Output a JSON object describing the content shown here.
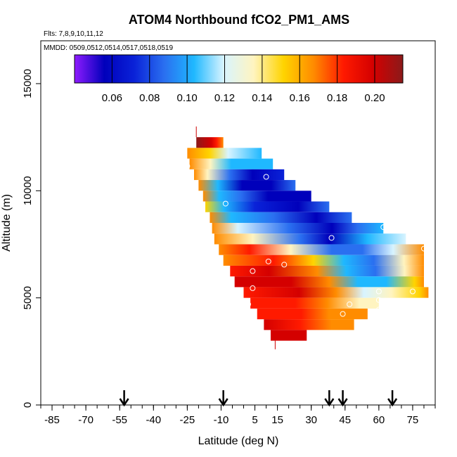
{
  "chart_data": {
    "type": "heatmap",
    "title": "ATOM4 Northbound fCO2_PM1_AMS",
    "flights_note": "Flts: 7,8,9,10,11,12",
    "dates_note": "MMDD: 0509,0512,0514,0517,0518,0519",
    "xlabel": "Latitude (deg N)",
    "ylabel": "Altitude (m)",
    "xlim": [
      -90,
      85
    ],
    "ylim": [
      0,
      17000
    ],
    "x_tick_labels": [
      "-85",
      "-70",
      "-55",
      "-40",
      "-25",
      "-10",
      "5",
      "15",
      "30",
      "45",
      "60",
      "75"
    ],
    "x_tick_values": [
      -85,
      -70,
      -55,
      -40,
      -25,
      -10,
      5,
      15,
      30,
      45,
      60,
      75
    ],
    "y_tick_labels": [
      "0",
      "5000",
      "10000",
      "15000"
    ],
    "y_tick_values": [
      0,
      5000,
      10000,
      15000
    ],
    "colorbar": {
      "range": [
        0.04,
        0.215
      ],
      "tick_labels": [
        "0.06",
        "0.08",
        "0.10",
        "0.12",
        "0.14",
        "0.16",
        "0.18",
        "0.20"
      ],
      "tick_values": [
        0.06,
        0.08,
        0.1,
        0.12,
        0.14,
        0.16,
        0.18,
        0.2
      ],
      "colors": [
        "#8f1bff",
        "#0000bb",
        "#0a22d8",
        "#2a6ff0",
        "#1fb8ff",
        "#d8f4ff",
        "#fff4c0",
        "#ffd400",
        "#ff8c00",
        "#ff1a00",
        "#d40000",
        "#8b1a1a"
      ]
    },
    "arrow_latitudes": [
      -53,
      -9,
      38,
      44,
      66
    ],
    "grid": false,
    "legend": "top colorbar",
    "altitude_bands": [
      {
        "alt_min": 12000,
        "alt_max": 12500,
        "lat_start": -21,
        "lat_end": -9,
        "stops": [
          [
            0,
            0.21
          ],
          [
            0.55,
            0.2
          ],
          [
            0.75,
            0.18
          ],
          [
            1,
            0.16
          ]
        ]
      },
      {
        "alt_min": 11500,
        "alt_max": 12000,
        "lat_start": -25,
        "lat_end": 8,
        "stops": [
          [
            0,
            0.17
          ],
          [
            0.3,
            0.15
          ],
          [
            0.55,
            0.125
          ],
          [
            1,
            0.105
          ]
        ]
      },
      {
        "alt_min": 11000,
        "alt_max": 11500,
        "lat_start": -24,
        "lat_end": 13,
        "stops": [
          [
            0,
            0.16
          ],
          [
            0.25,
            0.14
          ],
          [
            0.5,
            0.11
          ],
          [
            0.75,
            0.1
          ],
          [
            1,
            0.1
          ]
        ]
      },
      {
        "alt_min": 10500,
        "alt_max": 11000,
        "lat_start": -22,
        "lat_end": 18,
        "stops": [
          [
            0,
            0.17
          ],
          [
            0.15,
            0.13
          ],
          [
            0.4,
            0.09
          ],
          [
            0.65,
            0.06
          ],
          [
            1,
            0.07
          ]
        ]
      },
      {
        "alt_min": 10000,
        "alt_max": 10500,
        "lat_start": -20,
        "lat_end": 23,
        "stops": [
          [
            0,
            0.16
          ],
          [
            0.2,
            0.1
          ],
          [
            0.45,
            0.06
          ],
          [
            0.75,
            0.06
          ],
          [
            1,
            0.08
          ]
        ]
      },
      {
        "alt_min": 9500,
        "alt_max": 10000,
        "lat_start": -18,
        "lat_end": 30,
        "stops": [
          [
            0,
            0.16
          ],
          [
            0.15,
            0.11
          ],
          [
            0.35,
            0.08
          ],
          [
            0.6,
            0.06
          ],
          [
            1,
            0.06
          ]
        ]
      },
      {
        "alt_min": 9000,
        "alt_max": 9500,
        "lat_start": -17,
        "lat_end": 38,
        "stops": [
          [
            0,
            0.15
          ],
          [
            0.15,
            0.1
          ],
          [
            0.4,
            0.07
          ],
          [
            0.75,
            0.06
          ],
          [
            1,
            0.08
          ]
        ]
      },
      {
        "alt_min": 8500,
        "alt_max": 9000,
        "lat_start": -15,
        "lat_end": 48,
        "stops": [
          [
            0,
            0.16
          ],
          [
            0.15,
            0.1
          ],
          [
            0.45,
            0.08
          ],
          [
            0.75,
            0.06
          ],
          [
            1,
            0.09
          ]
        ]
      },
      {
        "alt_min": 8000,
        "alt_max": 8500,
        "lat_start": -14,
        "lat_end": 62,
        "stops": [
          [
            0,
            0.16
          ],
          [
            0.15,
            0.12
          ],
          [
            0.45,
            0.09
          ],
          [
            0.7,
            0.06
          ],
          [
            0.85,
            0.09
          ],
          [
            1,
            0.11
          ]
        ]
      },
      {
        "alt_min": 7500,
        "alt_max": 8000,
        "lat_start": -13,
        "lat_end": 72,
        "stops": [
          [
            0,
            0.16
          ],
          [
            0.2,
            0.13
          ],
          [
            0.45,
            0.09
          ],
          [
            0.6,
            0.06
          ],
          [
            0.8,
            0.1
          ],
          [
            1,
            0.12
          ]
        ]
      },
      {
        "alt_min": 7000,
        "alt_max": 7500,
        "lat_start": -11,
        "lat_end": 80,
        "stops": [
          [
            0,
            0.16
          ],
          [
            0.15,
            0.18
          ],
          [
            0.35,
            0.14
          ],
          [
            0.55,
            0.09
          ],
          [
            0.7,
            0.08
          ],
          [
            0.85,
            0.12
          ],
          [
            1,
            0.16
          ]
        ]
      },
      {
        "alt_min": 6500,
        "alt_max": 7000,
        "lat_start": -9,
        "lat_end": 80,
        "stops": [
          [
            0,
            0.17
          ],
          [
            0.25,
            0.19
          ],
          [
            0.45,
            0.15
          ],
          [
            0.6,
            0.1
          ],
          [
            0.75,
            0.09
          ],
          [
            0.9,
            0.13
          ],
          [
            1,
            0.16
          ]
        ]
      },
      {
        "alt_min": 6000,
        "alt_max": 6500,
        "lat_start": -6,
        "lat_end": 80,
        "stops": [
          [
            0,
            0.19
          ],
          [
            0.2,
            0.2
          ],
          [
            0.45,
            0.17
          ],
          [
            0.6,
            0.11
          ],
          [
            0.75,
            0.09
          ],
          [
            0.9,
            0.14
          ],
          [
            1,
            0.17
          ]
        ]
      },
      {
        "alt_min": 5500,
        "alt_max": 6000,
        "lat_start": -4,
        "lat_end": 80,
        "stops": [
          [
            0,
            0.2
          ],
          [
            0.3,
            0.2
          ],
          [
            0.5,
            0.17
          ],
          [
            0.65,
            0.11
          ],
          [
            0.8,
            0.11
          ],
          [
            0.95,
            0.15
          ],
          [
            1,
            0.17
          ]
        ]
      },
      {
        "alt_min": 5000,
        "alt_max": 5500,
        "lat_start": 0,
        "lat_end": 82,
        "stops": [
          [
            0,
            0.18
          ],
          [
            0.3,
            0.2
          ],
          [
            0.5,
            0.16
          ],
          [
            0.65,
            0.12
          ],
          [
            0.8,
            0.13
          ],
          [
            0.95,
            0.15
          ],
          [
            1,
            0.17
          ]
        ]
      },
      {
        "alt_min": 4500,
        "alt_max": 5000,
        "lat_start": 3,
        "lat_end": 60,
        "stops": [
          [
            0,
            0.19
          ],
          [
            0.35,
            0.19
          ],
          [
            0.6,
            0.17
          ],
          [
            0.85,
            0.14
          ],
          [
            1,
            0.14
          ]
        ]
      },
      {
        "alt_min": 4000,
        "alt_max": 4500,
        "lat_start": 6,
        "lat_end": 55,
        "stops": [
          [
            0,
            0.18
          ],
          [
            0.4,
            0.19
          ],
          [
            0.65,
            0.17
          ],
          [
            1,
            0.16
          ]
        ]
      },
      {
        "alt_min": 3500,
        "alt_max": 4000,
        "lat_start": 9,
        "lat_end": 49,
        "stops": [
          [
            0,
            0.2
          ],
          [
            0.4,
            0.18
          ],
          [
            0.75,
            0.17
          ],
          [
            1,
            0.16
          ]
        ]
      },
      {
        "alt_min": 3000,
        "alt_max": 3500,
        "lat_start": 12,
        "lat_end": 28,
        "stops": [
          [
            0,
            0.2
          ],
          [
            0.5,
            0.2
          ],
          [
            1,
            0.2
          ]
        ]
      }
    ],
    "sample_points": [
      {
        "lat": -25,
        "alt": 11150
      },
      {
        "lat": 10,
        "alt": 10650
      },
      {
        "lat": -8,
        "alt": 9400
      },
      {
        "lat": 39,
        "alt": 7800
      },
      {
        "lat": 62,
        "alt": 8300
      },
      {
        "lat": 11,
        "alt": 6700
      },
      {
        "lat": 18,
        "alt": 6550
      },
      {
        "lat": 4,
        "alt": 6250
      },
      {
        "lat": 4,
        "alt": 5450
      },
      {
        "lat": 2,
        "alt": 4700
      },
      {
        "lat": 47,
        "alt": 4700
      },
      {
        "lat": 44,
        "alt": 4250
      },
      {
        "lat": 60,
        "alt": 4900
      },
      {
        "lat": 60,
        "alt": 4450
      },
      {
        "lat": 75,
        "alt": 5300
      },
      {
        "lat": 80,
        "alt": 7300
      },
      {
        "lat": 60,
        "alt": 5300
      }
    ]
  }
}
